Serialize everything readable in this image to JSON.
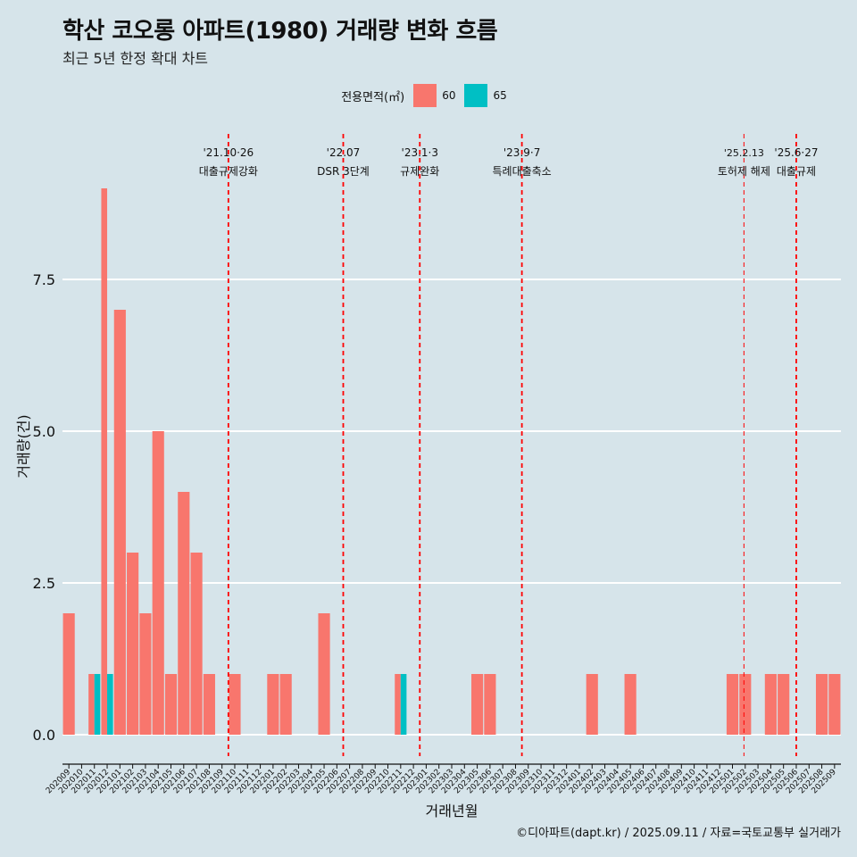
{
  "title": "학산 코오롱 아파트(1980) 거래량 변화 흐름",
  "subtitle": "최근 5년 한정 확대 차트",
  "caption": "©디아파트(dapt.kr) / 2025.09.11 / 자료=국토교통부 실거래가",
  "legend": {
    "title": "전용면적(㎡)",
    "items": [
      {
        "label": "60",
        "color": "#f8766d"
      },
      {
        "label": "65",
        "color": "#00bfc4"
      }
    ]
  },
  "chart_data": {
    "type": "bar",
    "xlabel": "거래년월",
    "ylabel": "거래량(건)",
    "ylim": [
      -0.2,
      9.6
    ],
    "yticks": [
      0.0,
      2.5,
      5.0,
      7.5
    ],
    "ytick_labels": [
      "0.0",
      "2.5",
      "5.0",
      "7.5"
    ],
    "grid": true,
    "legend_position": "top",
    "categories": [
      "202009",
      "202010",
      "202011",
      "202012",
      "202101",
      "202102",
      "202103",
      "202104",
      "202105",
      "202106",
      "202107",
      "202108",
      "202109",
      "202110",
      "202111",
      "202112",
      "202201",
      "202202",
      "202203",
      "202204",
      "202205",
      "202206",
      "202207",
      "202208",
      "202209",
      "202210",
      "202211",
      "202212",
      "202301",
      "202302",
      "202303",
      "202304",
      "202305",
      "202306",
      "202307",
      "202308",
      "202309",
      "202310",
      "202311",
      "202312",
      "202401",
      "202402",
      "202403",
      "202404",
      "202405",
      "202406",
      "202407",
      "202408",
      "202409",
      "202410",
      "202411",
      "202412",
      "202501",
      "202502",
      "202503",
      "202504",
      "202505",
      "202506",
      "202507",
      "202508",
      "202509"
    ],
    "series": [
      {
        "name": "60",
        "color": "#f8766d",
        "values": [
          2,
          0,
          1,
          9,
          7,
          3,
          2,
          5,
          1,
          4,
          3,
          1,
          0,
          1,
          0,
          0,
          1,
          1,
          0,
          0,
          2,
          0,
          0,
          0,
          0,
          0,
          1,
          0,
          0,
          0,
          0,
          0,
          1,
          1,
          0,
          0,
          0,
          0,
          0,
          0,
          0,
          1,
          0,
          0,
          1,
          0,
          0,
          0,
          0,
          0,
          0,
          0,
          1,
          1,
          0,
          1,
          1,
          0,
          0,
          1,
          1
        ]
      },
      {
        "name": "65",
        "color": "#00bfc4",
        "values": [
          0,
          0,
          1,
          1,
          0,
          0,
          0,
          0,
          0,
          0,
          0,
          0,
          0,
          0,
          0,
          0,
          0,
          0,
          0,
          0,
          0,
          0,
          0,
          0,
          0,
          0,
          1,
          0,
          0,
          0,
          0,
          0,
          0,
          0,
          0,
          0,
          0,
          0,
          0,
          0,
          0,
          0,
          0,
          0,
          0,
          0,
          0,
          0,
          0,
          0,
          0,
          0,
          0,
          0,
          0,
          0,
          0,
          0,
          0,
          0,
          0
        ]
      }
    ],
    "annotations": [
      {
        "x": 13.0,
        "line1": "'21.10·26",
        "line2": "대출규제강화",
        "style": "dashed"
      },
      {
        "x": 22.0,
        "line1": "'22.07",
        "line2": "DSR 3단계",
        "style": "dashed"
      },
      {
        "x": 28.0,
        "line1": "'23.1·3",
        "line2": "규제완화",
        "style": "dashed"
      },
      {
        "x": 36.0,
        "line1": "'23.9·7",
        "line2": "특례대출축소",
        "style": "dashed"
      },
      {
        "x": 53.4,
        "line1": "'25.2.13",
        "line2": "토허제 해제",
        "style": "thin"
      },
      {
        "x": 57.5,
        "line1": "'25.6·27",
        "line2": "대출규제",
        "style": "dashed"
      }
    ]
  }
}
